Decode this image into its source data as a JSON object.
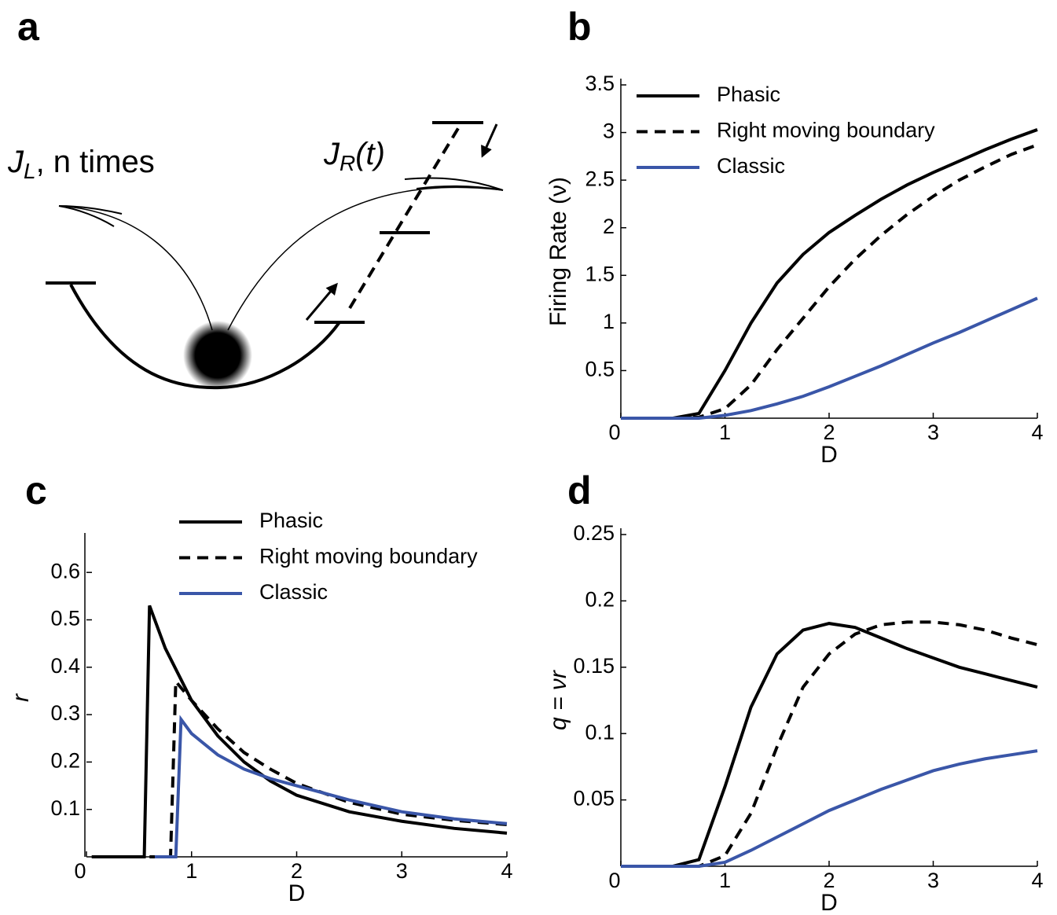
{
  "panel_labels": [
    "a",
    "b",
    "c",
    "d"
  ],
  "diagram": {
    "left_label": {
      "symbol": "J",
      "subscript": "L",
      "text": ",  n times"
    },
    "right_label": {
      "symbol": "J",
      "subscript": "R",
      "text": "(t)"
    }
  },
  "chart_data": [
    {
      "type": "line",
      "xlabel": "D",
      "ylabel": "Firing Rate (ν)",
      "x": [
        0,
        0.25,
        0.5,
        0.75,
        1,
        1.25,
        1.5,
        1.75,
        2,
        2.25,
        2.5,
        2.75,
        3,
        3.25,
        3.5,
        3.75,
        4
      ],
      "xlim": [
        0,
        4
      ],
      "xticks": [
        0,
        1,
        2,
        3,
        4
      ],
      "ylim": [
        0,
        3.5
      ],
      "yticks": [
        0.5,
        1,
        1.5,
        2,
        2.5,
        3,
        3.5
      ],
      "legend": "upper left",
      "series": [
        {
          "name": "Phasic",
          "color": "#000000",
          "dashed": false,
          "values": [
            0,
            0,
            0,
            0.05,
            0.5,
            1.0,
            1.42,
            1.72,
            1.95,
            2.13,
            2.3,
            2.45,
            2.58,
            2.7,
            2.82,
            2.93,
            3.03
          ]
        },
        {
          "name": "Right moving boundary",
          "color": "#000000",
          "dashed": true,
          "values": [
            0,
            0,
            0,
            0.01,
            0.1,
            0.35,
            0.72,
            1.05,
            1.38,
            1.67,
            1.92,
            2.14,
            2.33,
            2.5,
            2.64,
            2.77,
            2.87
          ]
        },
        {
          "name": "Classic",
          "color": "#3a56a8",
          "dashed": false,
          "values": [
            0,
            0,
            0,
            0,
            0.03,
            0.08,
            0.15,
            0.23,
            0.33,
            0.44,
            0.55,
            0.67,
            0.79,
            0.9,
            1.02,
            1.14,
            1.26
          ]
        }
      ]
    },
    {
      "type": "line",
      "xlabel": "D",
      "ylabel": "r",
      "xlim": [
        0,
        4
      ],
      "xticks": [
        0,
        1,
        2,
        3,
        4
      ],
      "ylim": [
        0,
        0.67
      ],
      "yticks": [
        0.1,
        0.2,
        0.3,
        0.4,
        0.5,
        0.6
      ],
      "legend": "upper center",
      "series": [
        {
          "name": "Phasic",
          "color": "#000000",
          "dashed": false,
          "x": [
            0.05,
            0.55,
            0.6,
            0.75,
            1,
            1.25,
            1.5,
            1.75,
            2,
            2.5,
            3,
            3.5,
            4
          ],
          "values": [
            0,
            0,
            0.53,
            0.44,
            0.33,
            0.255,
            0.2,
            0.16,
            0.13,
            0.095,
            0.075,
            0.06,
            0.05
          ]
        },
        {
          "name": "Right moving boundary",
          "color": "#000000",
          "dashed": true,
          "x": [
            0.6,
            0.8,
            0.85,
            1,
            1.25,
            1.5,
            1.75,
            2,
            2.5,
            3,
            3.5,
            4
          ],
          "values": [
            0,
            0,
            0.37,
            0.33,
            0.27,
            0.22,
            0.185,
            0.155,
            0.115,
            0.09,
            0.077,
            0.068
          ]
        },
        {
          "name": "Classic",
          "color": "#3a56a8",
          "dashed": false,
          "x": [
            0.65,
            0.85,
            0.9,
            1,
            1.25,
            1.5,
            1.75,
            2,
            2.5,
            3,
            3.5,
            4
          ],
          "values": [
            0,
            0,
            0.29,
            0.26,
            0.215,
            0.185,
            0.165,
            0.15,
            0.12,
            0.095,
            0.08,
            0.07
          ]
        }
      ]
    },
    {
      "type": "line",
      "xlabel": "D",
      "ylabel": "q = νr",
      "x": [
        0,
        0.25,
        0.5,
        0.75,
        1,
        1.25,
        1.5,
        1.75,
        2,
        2.25,
        2.5,
        2.75,
        3,
        3.25,
        3.5,
        3.75,
        4
      ],
      "xlim": [
        0,
        4
      ],
      "xticks": [
        0,
        1,
        2,
        3,
        4
      ],
      "ylim": [
        0,
        0.25
      ],
      "yticks": [
        0.05,
        0.1,
        0.15,
        0.2,
        0.25
      ],
      "series": [
        {
          "color": "#000000",
          "dashed": false,
          "values": [
            0,
            0,
            0,
            0.005,
            0.06,
            0.12,
            0.16,
            0.178,
            0.183,
            0.18,
            0.172,
            0.164,
            0.157,
            0.15,
            0.145,
            0.14,
            0.135
          ]
        },
        {
          "color": "#000000",
          "dashed": true,
          "values": [
            0,
            0,
            0,
            0,
            0.008,
            0.04,
            0.09,
            0.135,
            0.16,
            0.175,
            0.182,
            0.184,
            0.184,
            0.182,
            0.178,
            0.172,
            0.167
          ]
        },
        {
          "color": "#3a56a8",
          "dashed": false,
          "values": [
            0,
            0,
            0,
            0,
            0.003,
            0.012,
            0.022,
            0.032,
            0.042,
            0.05,
            0.058,
            0.065,
            0.072,
            0.077,
            0.081,
            0.084,
            0.087
          ]
        }
      ]
    }
  ]
}
